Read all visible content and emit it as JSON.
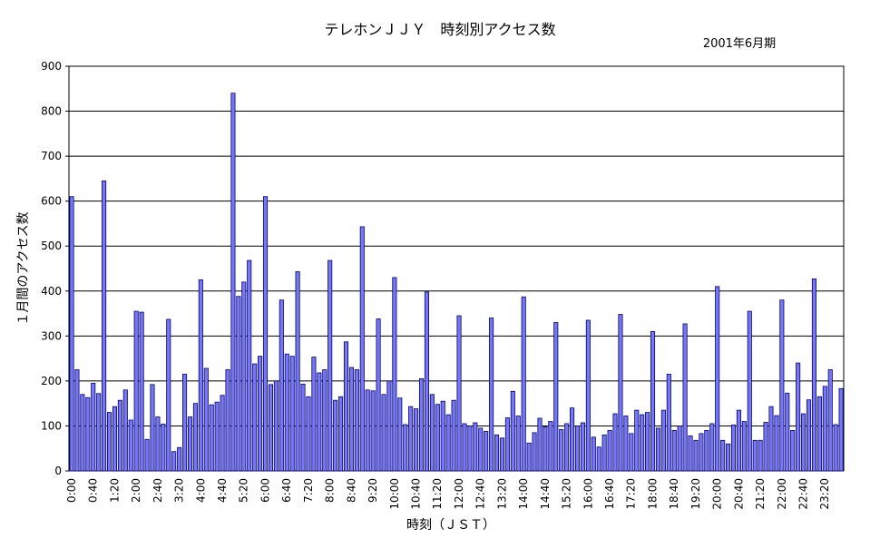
{
  "chart_data": {
    "type": "bar",
    "title": "テレホンＪＪＹ　時刻別アクセス数",
    "subtitle": "2001年6月期",
    "xlabel": "時刻（ＪＳＴ）",
    "ylabel": "１月間のアクセス数",
    "ylim": [
      0,
      900
    ],
    "yticks": [
      0,
      100,
      200,
      300,
      400,
      500,
      600,
      700,
      800,
      900
    ],
    "grid": true,
    "bar_color": "#7777ee",
    "bar_edge_color": "#000080",
    "xtick_labels": [
      "0:00",
      "0:40",
      "1:20",
      "2:00",
      "2:40",
      "3:20",
      "4:00",
      "4:40",
      "5:20",
      "6:00",
      "6:40",
      "7:20",
      "8:00",
      "8:40",
      "9:20",
      "10:00",
      "10:40",
      "11:20",
      "12:00",
      "12:40",
      "13:20",
      "14:00",
      "14:40",
      "15:20",
      "16:00",
      "16:40",
      "17:20",
      "18:00",
      "18:40",
      "19:20",
      "20:00",
      "20:40",
      "21:20",
      "22:00",
      "22:40",
      "23:20"
    ],
    "interval_minutes": 10,
    "values": [
      610,
      225,
      170,
      163,
      195,
      172,
      645,
      130,
      143,
      157,
      180,
      113,
      355,
      353,
      70,
      192,
      120,
      104,
      337,
      43,
      52,
      215,
      120,
      150,
      425,
      228,
      147,
      153,
      168,
      225,
      840,
      388,
      420,
      468,
      238,
      255,
      610,
      192,
      200,
      380,
      260,
      255,
      443,
      193,
      165,
      253,
      218,
      225,
      468,
      157,
      165,
      287,
      230,
      225,
      543,
      180,
      178,
      338,
      170,
      200,
      430,
      162,
      103,
      143,
      138,
      205,
      398,
      170,
      148,
      155,
      125,
      157,
      345,
      105,
      100,
      107,
      95,
      88,
      340,
      80,
      73,
      118,
      177,
      122,
      387,
      62,
      85,
      117,
      98,
      110,
      330,
      92,
      105,
      140,
      100,
      107,
      335,
      75,
      53,
      80,
      90,
      127,
      348,
      122,
      83,
      135,
      125,
      130,
      310,
      95,
      135,
      215,
      90,
      100,
      327,
      78,
      68,
      83,
      90,
      105,
      410,
      68,
      60,
      102,
      135,
      110,
      355,
      68,
      68,
      108,
      143,
      123,
      380,
      173,
      90,
      240,
      127,
      158,
      427,
      165,
      188,
      225,
      103,
      183
    ]
  }
}
